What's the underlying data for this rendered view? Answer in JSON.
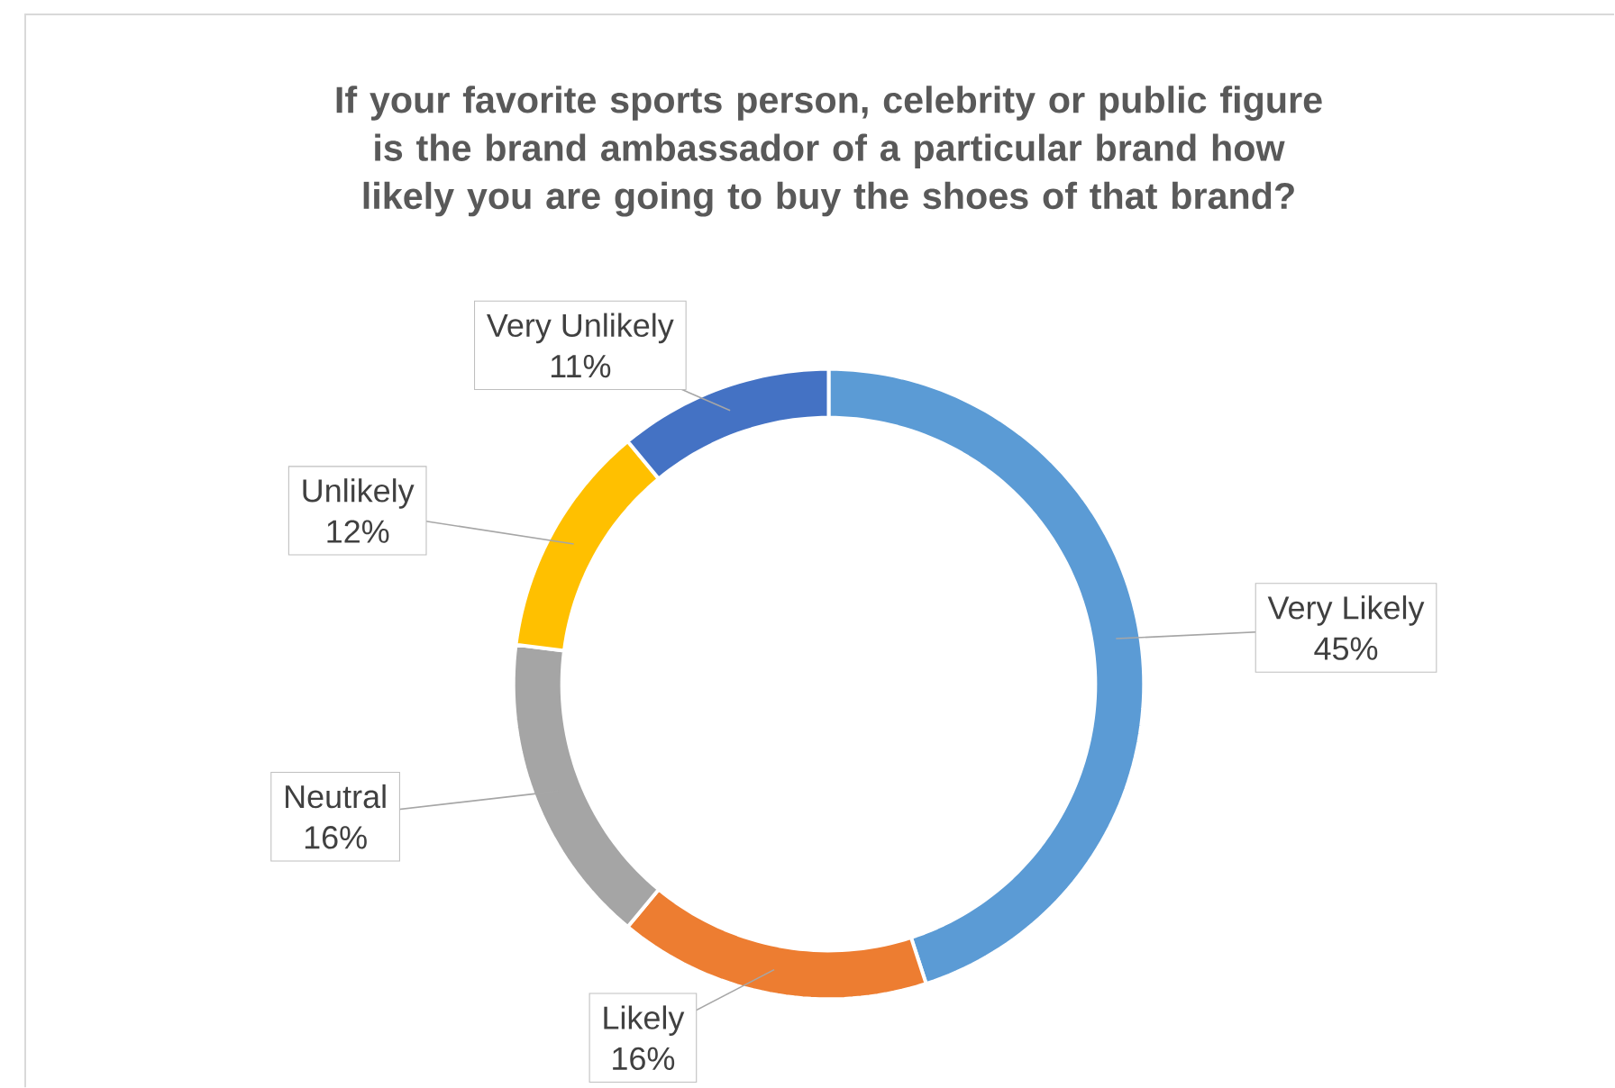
{
  "chart_data": {
    "type": "donut",
    "title": "If your favorite sports person, celebrity or public figure is the brand ambassador of a particular brand how likely you are going to buy the shoes of that brand?",
    "categories": [
      "Very Likely",
      "Likely",
      "Neutral",
      "Unlikely",
      "Very Unlikely"
    ],
    "values": [
      45,
      16,
      16,
      12,
      11
    ],
    "colors": [
      "#5b9bd5",
      "#ed7d31",
      "#a5a5a5",
      "#ffc000",
      "#4472c4"
    ],
    "value_labels": [
      "45%",
      "16%",
      "16%",
      "12%",
      "11%"
    ]
  }
}
